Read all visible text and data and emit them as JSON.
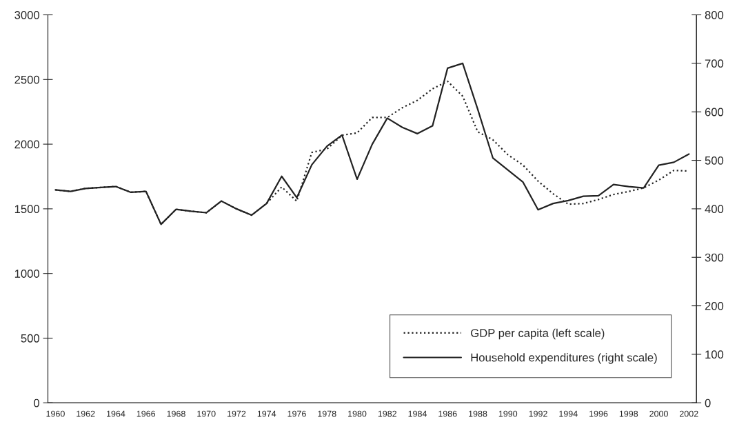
{
  "chart_data": {
    "type": "line",
    "categories": [
      "1960",
      null,
      "1962",
      null,
      "1964",
      null,
      "1966",
      null,
      "1968",
      null,
      "1970",
      null,
      "1972",
      null,
      "1974",
      null,
      "1976",
      null,
      "1978",
      null,
      "1980",
      null,
      "1982",
      null,
      "1984",
      null,
      "1986",
      null,
      "1988",
      null,
      "1990",
      null,
      "1992",
      null,
      "1994",
      null,
      "1996",
      null,
      "1998",
      null,
      "2000",
      null,
      "2002"
    ],
    "series": [
      {
        "name": "GDP per capita (left scale)",
        "color": "#222222",
        "line_style": "dotted",
        "axis": "y",
        "values": [
          1646,
          1635,
          1658,
          1665,
          1673,
          1628,
          1635,
          1380,
          1496,
          1481,
          1470,
          1560,
          1500,
          1451,
          1541,
          1669,
          1559,
          1936,
          1962,
          2069,
          2087,
          2206,
          2206,
          2282,
          2339,
          2428,
          2486,
          2371,
          2095,
          2034,
          1918,
          1838,
          1714,
          1616,
          1536,
          1541,
          1572,
          1611,
          1634,
          1662,
          1722,
          1797,
          1792
        ]
      },
      {
        "name": "Household expenditures (right scale)",
        "color": "#222222",
        "line_style": "solid",
        "axis": "y2",
        "values": [
          439,
          436,
          442,
          444,
          446,
          434,
          436,
          368,
          399,
          395,
          392,
          416,
          400,
          387,
          411,
          467,
          423,
          491,
          529,
          552,
          461,
          533,
          587,
          568,
          555,
          571,
          690,
          700,
          605,
          505,
          480,
          455,
          398,
          411,
          417,
          426,
          427,
          450,
          446,
          443,
          490,
          496,
          513
        ]
      }
    ],
    "ylim": [
      0,
      3000
    ],
    "yticks": [
      0,
      500,
      1000,
      1500,
      2000,
      2500,
      3000
    ],
    "y2lim": [
      0,
      800
    ],
    "y2ticks": [
      0,
      100,
      200,
      300,
      400,
      500,
      600,
      700,
      800
    ],
    "grid": false,
    "legend": "bottom right"
  }
}
